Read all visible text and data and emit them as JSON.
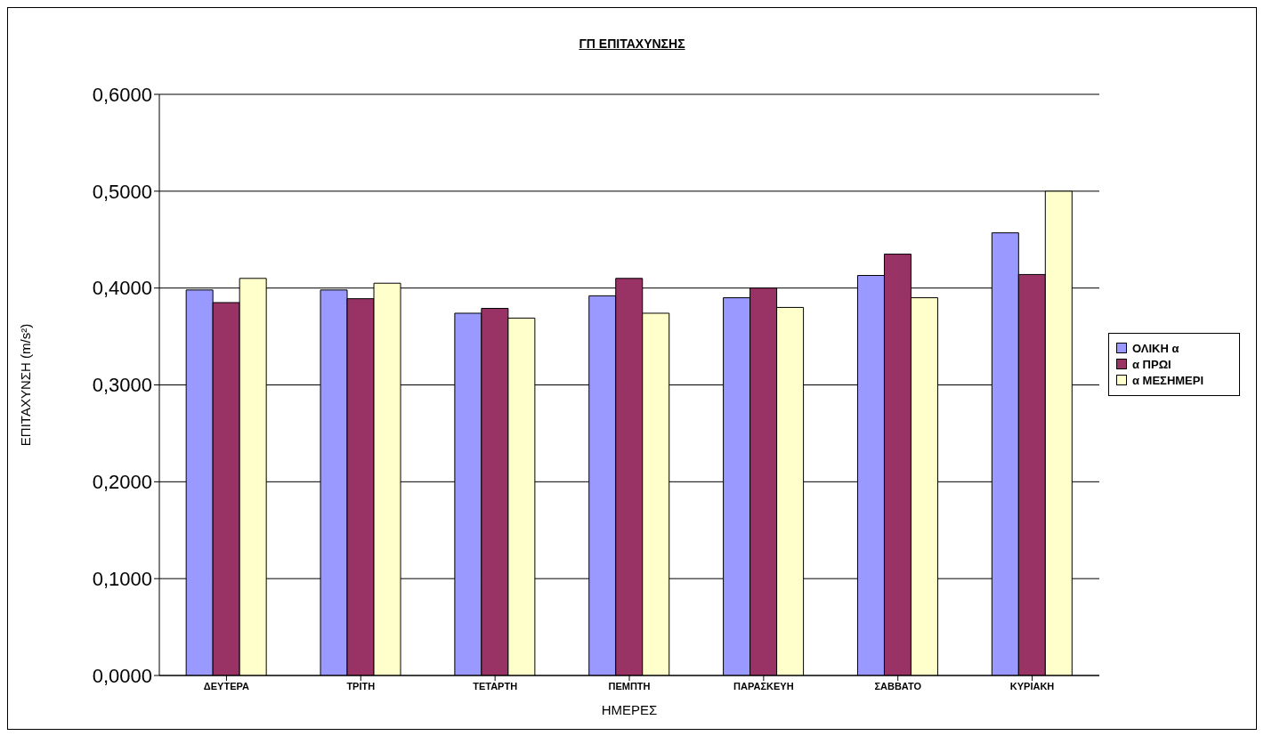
{
  "chart_data": {
    "type": "bar",
    "title": "ΓΠ ΕΠΙΤΑΧΥΝΣΗΣ",
    "xlabel": "ΗΜΕΡΕΣ",
    "ylabel": "ΕΠΙΤΑΧΥΝΣΗ (m/s²)",
    "categories": [
      "ΔΕΥΤΕΡΑ",
      "ΤΡΙΤΗ",
      "ΤΕΤΑΡΤΗ",
      "ΠΕΜΠΤΗ",
      "ΠΑΡΑΣΚΕΥΗ",
      "ΣΑΒΒΑΤΟ",
      "ΚΥΡΙΑΚΗ"
    ],
    "series": [
      {
        "name": "ΟΛΙΚΗ α",
        "color": "#9999ff",
        "values": [
          0.398,
          0.398,
          0.374,
          0.392,
          0.39,
          0.413,
          0.457
        ]
      },
      {
        "name": "α ΠΡΩΙ",
        "color": "#993366",
        "values": [
          0.385,
          0.389,
          0.379,
          0.41,
          0.4,
          0.435,
          0.414
        ]
      },
      {
        "name": "α ΜΕΣΗΜΕΡΙ",
        "color": "#ffffcc",
        "values": [
          0.41,
          0.405,
          0.369,
          0.374,
          0.38,
          0.39,
          0.5
        ]
      }
    ],
    "ylim": [
      0,
      0.6
    ],
    "yticks": [
      {
        "value": 0,
        "label": "0,0000"
      },
      {
        "value": 0.1,
        "label": "0,1000"
      },
      {
        "value": 0.2,
        "label": "0,2000"
      },
      {
        "value": 0.3,
        "label": "0,3000"
      },
      {
        "value": 0.4,
        "label": "0,4000"
      },
      {
        "value": 0.5,
        "label": "0,5000"
      },
      {
        "value": 0.6,
        "label": "0,6000"
      }
    ],
    "grid": "y",
    "legend": "right"
  }
}
